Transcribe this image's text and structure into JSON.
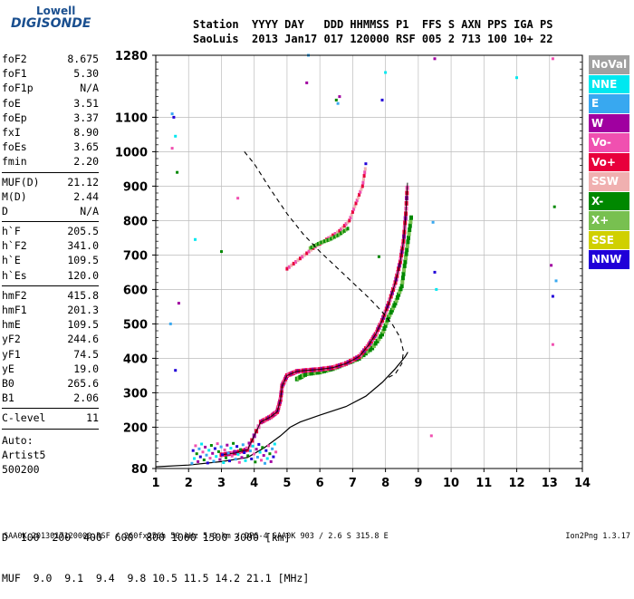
{
  "logo": {
    "sub": "Lowell",
    "brand": "DIGISONDE"
  },
  "header": {
    "cols": [
      {
        "h": "Station",
        "v": "SaoLuis"
      },
      {
        "h": "YYYY",
        "v": "2013"
      },
      {
        "h": "DAY",
        "v": "Jan17"
      },
      {
        "h": "DDD",
        "v": "017"
      },
      {
        "h": "HHMMSS",
        "v": "120000"
      },
      {
        "h": "P1",
        "v": "RSF"
      },
      {
        "h": "FFS",
        "v": "005"
      },
      {
        "h": "S",
        "v": "2"
      },
      {
        "h": "AXN",
        "v": "713"
      },
      {
        "h": "PPS",
        "v": "100"
      },
      {
        "h": "IGA",
        "v": "10+"
      },
      {
        "h": "PS",
        "v": "22"
      }
    ]
  },
  "params": {
    "group1": [
      {
        "k": "foF2",
        "v": "8.675"
      },
      {
        "k": "foF1",
        "v": "5.30"
      },
      {
        "k": "foF1p",
        "v": "N/A"
      },
      {
        "k": "foE",
        "v": "3.51"
      },
      {
        "k": "foEp",
        "v": "3.37"
      },
      {
        "k": "fxI",
        "v": "8.90"
      },
      {
        "k": "foEs",
        "v": "3.65"
      },
      {
        "k": "fmin",
        "v": "2.20"
      }
    ],
    "group2": [
      {
        "k": "MUF(D)",
        "v": "21.12"
      },
      {
        "k": "M(D)",
        "v": "2.44"
      },
      {
        "k": "D",
        "v": "N/A"
      }
    ],
    "group3": [
      {
        "k": "h`F",
        "v": "205.5"
      },
      {
        "k": "h`F2",
        "v": "341.0"
      },
      {
        "k": "h`E",
        "v": "109.5"
      },
      {
        "k": "h`Es",
        "v": "120.0"
      }
    ],
    "group4": [
      {
        "k": "hmF2",
        "v": "415.8"
      },
      {
        "k": "hmF1",
        "v": "201.3"
      },
      {
        "k": "hmE",
        "v": "109.5"
      },
      {
        "k": "yF2",
        "v": "244.6"
      },
      {
        "k": "yF1",
        "v": "74.5"
      },
      {
        "k": "yE",
        "v": "19.0"
      },
      {
        "k": "B0",
        "v": "265.6"
      },
      {
        "k": "B1",
        "v": "2.06"
      }
    ],
    "group5": [
      {
        "k": "C-level",
        "v": "11"
      }
    ]
  },
  "auto": {
    "line1": "Auto:",
    "line2": "Artist5",
    "line3": "500200"
  },
  "legend": [
    {
      "label": "NoVal",
      "color": "#a0a0a0"
    },
    {
      "label": "NNE",
      "color": "#00e8f0"
    },
    {
      "label": "E",
      "color": "#38a8f0"
    },
    {
      "label": "W",
      "color": "#a000a0"
    },
    {
      "label": "Vo-",
      "color": "#f050b0"
    },
    {
      "label": "Vo+",
      "color": "#e8003c"
    },
    {
      "label": "SSW",
      "color": "#f0b0b0"
    },
    {
      "label": "X-",
      "color": "#008800"
    },
    {
      "label": "X+",
      "color": "#78c050"
    },
    {
      "label": "SSE",
      "color": "#d0d000"
    },
    {
      "label": "NNW",
      "color": "#2000d8"
    }
  ],
  "dmuf": {
    "d_label": "D",
    "d_values": "  100  200  400  600  800 1000 1500 3000 [km]",
    "muf_label": "MUF",
    "muf_values": "  9.0  9.1  9.4  9.8 10.5 11.5 14.2 21.1 [MHz]"
  },
  "footer": {
    "left": "SAA0K_2013017120000.RSF / 260fx256h 50 kHz 5.0 km / DPS-4 SAA0K 903 / 2.6 S 315.8 E",
    "right": "Ion2Png 1.3.17"
  },
  "chart_data": {
    "type": "scatter",
    "xlim": [
      1,
      14
    ],
    "ylim": [
      80,
      1280
    ],
    "x_ticks": [
      1,
      2,
      3,
      4,
      5,
      6,
      7,
      8,
      9,
      10,
      11,
      12,
      13,
      14
    ],
    "y_ticks": [
      80,
      200,
      300,
      400,
      500,
      600,
      700,
      800,
      900,
      1000,
      1100,
      1280
    ],
    "grid": true,
    "profile_curve": {
      "name": "profile",
      "x": [
        1.0,
        2.0,
        3.0,
        3.8,
        4.3,
        4.8,
        5.1,
        5.4,
        6.0,
        6.8,
        7.4,
        7.9,
        8.3,
        8.6,
        8.68
      ],
      "y": [
        85,
        90,
        100,
        112,
        140,
        175,
        200,
        215,
        235,
        260,
        290,
        330,
        370,
        405,
        418
      ]
    },
    "ordinary_trace": {
      "x": [
        3.0,
        3.4,
        3.8,
        4.2,
        4.5,
        4.7,
        4.8,
        4.85,
        5.0,
        5.3,
        5.6,
        6.0,
        6.4,
        6.8,
        7.2,
        7.5,
        7.7,
        7.9,
        8.1,
        8.3,
        8.45,
        8.55,
        8.62,
        8.67
      ],
      "y": [
        120,
        125,
        135,
        215,
        230,
        245,
        280,
        320,
        350,
        362,
        365,
        368,
        373,
        385,
        405,
        440,
        470,
        510,
        560,
        620,
        680,
        740,
        820,
        910
      ]
    },
    "extraordinary_trace": {
      "x": [
        5.3,
        5.6,
        6.0,
        6.4,
        6.8,
        7.2,
        7.6,
        7.9,
        8.1,
        8.3,
        8.5,
        8.6,
        8.7,
        8.8
      ],
      "y": [
        340,
        355,
        360,
        370,
        385,
        400,
        430,
        470,
        520,
        560,
        610,
        680,
        750,
        820
      ]
    },
    "upper_o_trace": {
      "x": [
        5.0,
        5.4,
        5.8,
        6.2,
        6.6,
        6.9,
        7.1,
        7.3,
        7.4
      ],
      "y": [
        660,
        690,
        720,
        745,
        770,
        800,
        850,
        900,
        960
      ]
    },
    "upper_x_trace": {
      "x": [
        5.7,
        6.0,
        6.3,
        6.6,
        6.9
      ],
      "y": [
        720,
        735,
        745,
        760,
        780
      ]
    },
    "dashed_curve": {
      "x": [
        3.7,
        4.0,
        4.5,
        5.0,
        5.5,
        6.0,
        6.5,
        7.0,
        7.5,
        7.9,
        8.2,
        8.45,
        8.55,
        8.5,
        8.3,
        8.0
      ],
      "y": [
        1000,
        965,
        890,
        820,
        760,
        710,
        665,
        620,
        575,
        535,
        500,
        460,
        420,
        385,
        355,
        340
      ]
    },
    "scattered_points": {
      "x": [
        1.5,
        1.55,
        1.6,
        1.5,
        1.65,
        1.7,
        1.45,
        1.6,
        2.2,
        3.5,
        3.0,
        9.5,
        9.45,
        9.5,
        9.55,
        13.1,
        13.15,
        13.05,
        13.2,
        13.1,
        12.0,
        13.1,
        6.5,
        6.6,
        6.55,
        7.9,
        8.0,
        9.4,
        7.8,
        5.6,
        5.65,
        7.4
      ],
      "y": [
        1110,
        1100,
        1045,
        1010,
        940,
        560,
        500,
        365,
        745,
        865,
        710,
        1270,
        795,
        650,
        600,
        1270,
        840,
        670,
        625,
        580,
        1215,
        440,
        1150,
        1160,
        1140,
        1150,
        1230,
        175,
        695,
        1200,
        1280,
        965
      ]
    }
  }
}
